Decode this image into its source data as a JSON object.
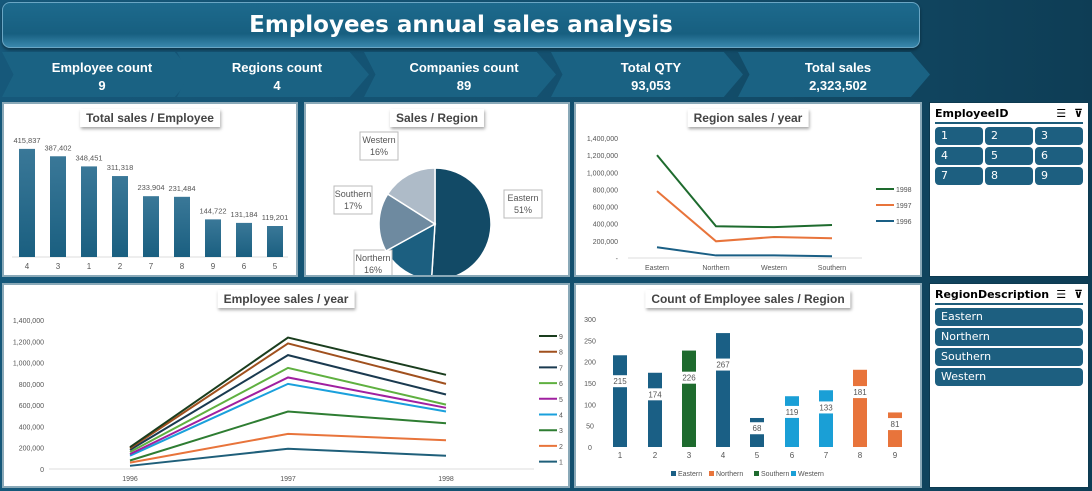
{
  "header": {
    "title": "Employees annual sales analysis"
  },
  "kpis": [
    {
      "label": "Employee count",
      "value": "9"
    },
    {
      "label": "Regions count",
      "value": "4"
    },
    {
      "label": "Companies count",
      "value": "89"
    },
    {
      "label": "Total QTY",
      "value": "93,053"
    },
    {
      "label": "Total sales",
      "value": "2,323,502"
    }
  ],
  "slicers": {
    "employee": {
      "title": "EmployeeID",
      "items": [
        "1",
        "2",
        "3",
        "4",
        "5",
        "6",
        "7",
        "8",
        "9"
      ]
    },
    "region": {
      "title": "RegionDescription",
      "items": [
        "Eastern",
        "Northern",
        "Southern",
        "Western"
      ]
    }
  },
  "chart_data": [
    {
      "type": "bar",
      "title": "Total sales / Employee",
      "categories": [
        "4",
        "3",
        "1",
        "2",
        "7",
        "8",
        "9",
        "6",
        "5"
      ],
      "values": [
        415837,
        387402,
        348451,
        311318,
        233904,
        231484,
        144722,
        131184,
        119201
      ],
      "labels": [
        "415,837",
        "387,402",
        "348,451",
        "311,318",
        "233,904",
        "231,484",
        "144,722",
        "131,184",
        "119,201"
      ],
      "color": "#1a5f80"
    },
    {
      "type": "pie",
      "title": "Sales / Region",
      "categories": [
        "Eastern",
        "Northern",
        "Southern",
        "Western"
      ],
      "values": [
        51,
        16,
        17,
        16
      ],
      "labels": [
        "51%",
        "16%",
        "17%",
        "16%"
      ],
      "colors": [
        "#124a66",
        "#1c5f80",
        "#6e8aa0",
        "#aebbc8"
      ]
    },
    {
      "type": "line",
      "stacked": true,
      "title": "Region sales / year",
      "categories": [
        "Eastern",
        "Northern",
        "Western",
        "Southern"
      ],
      "ylim": [
        0,
        1400000
      ],
      "yticks": [
        "-",
        "200,000",
        "400,000",
        "600,000",
        "800,000",
        "1,000,000",
        "1,200,000",
        "1,400,000"
      ],
      "legend": "right",
      "series": [
        {
          "name": "1996",
          "color": "#1a5f85",
          "values": [
            125000,
            30000,
            30000,
            20000
          ]
        },
        {
          "name": "1997",
          "color": "#e8743b",
          "values": [
            655000,
            165000,
            215000,
            210000
          ]
        },
        {
          "name": "1998",
          "color": "#1e6b2e",
          "values": [
            420000,
            175000,
            115000,
            155000
          ]
        }
      ]
    },
    {
      "type": "line",
      "stacked": true,
      "title": "Employee sales / year",
      "categories": [
        "1996",
        "1997",
        "1998"
      ],
      "ylim": [
        0,
        1400000
      ],
      "yticks": [
        "0",
        "200,000",
        "400,000",
        "600,000",
        "800,000",
        "1,000,000",
        "1,200,000",
        "1,400,000"
      ],
      "legend": "right",
      "series": [
        {
          "name": "1",
          "color": "#1f5f7a",
          "values": [
            30000,
            190000,
            125000
          ]
        },
        {
          "name": "2",
          "color": "#e8743b",
          "values": [
            30000,
            140000,
            145000
          ]
        },
        {
          "name": "3",
          "color": "#2e7d32",
          "values": [
            20000,
            210000,
            160000
          ]
        },
        {
          "name": "4",
          "color": "#1aa0dc",
          "values": [
            45000,
            260000,
            110000
          ]
        },
        {
          "name": "5",
          "color": "#a020a0",
          "values": [
            15000,
            60000,
            35000
          ]
        },
        {
          "name": "6",
          "color": "#5fb040",
          "values": [
            20000,
            90000,
            30000
          ]
        },
        {
          "name": "7",
          "color": "#1a3a50",
          "values": [
            20000,
            120000,
            95000
          ]
        },
        {
          "name": "8",
          "color": "#a0501e",
          "values": [
            15000,
            110000,
            100000
          ]
        },
        {
          "name": "9",
          "color": "#1a3d1e",
          "values": [
            10000,
            55000,
            85000
          ]
        }
      ]
    },
    {
      "type": "bar",
      "title": "Count of Employee sales / Region",
      "categories": [
        "1",
        "2",
        "3",
        "4",
        "5",
        "6",
        "7",
        "8",
        "9"
      ],
      "values": [
        215,
        174,
        226,
        267,
        68,
        119,
        133,
        181,
        81
      ],
      "regions": [
        "Eastern",
        "Eastern",
        "Southern",
        "Eastern",
        "Eastern",
        "Western",
        "Western",
        "Northern",
        "Northern"
      ],
      "ylim": [
        0,
        300
      ],
      "yticks": [
        "0",
        "50",
        "100",
        "150",
        "200",
        "250",
        "300"
      ],
      "legend": "bottom",
      "series": [
        {
          "name": "Eastern",
          "color": "#1a5f85"
        },
        {
          "name": "Northern",
          "color": "#e8743b"
        },
        {
          "name": "Southern",
          "color": "#1e6b2e"
        },
        {
          "name": "Western",
          "color": "#1a9fd6"
        }
      ]
    }
  ]
}
